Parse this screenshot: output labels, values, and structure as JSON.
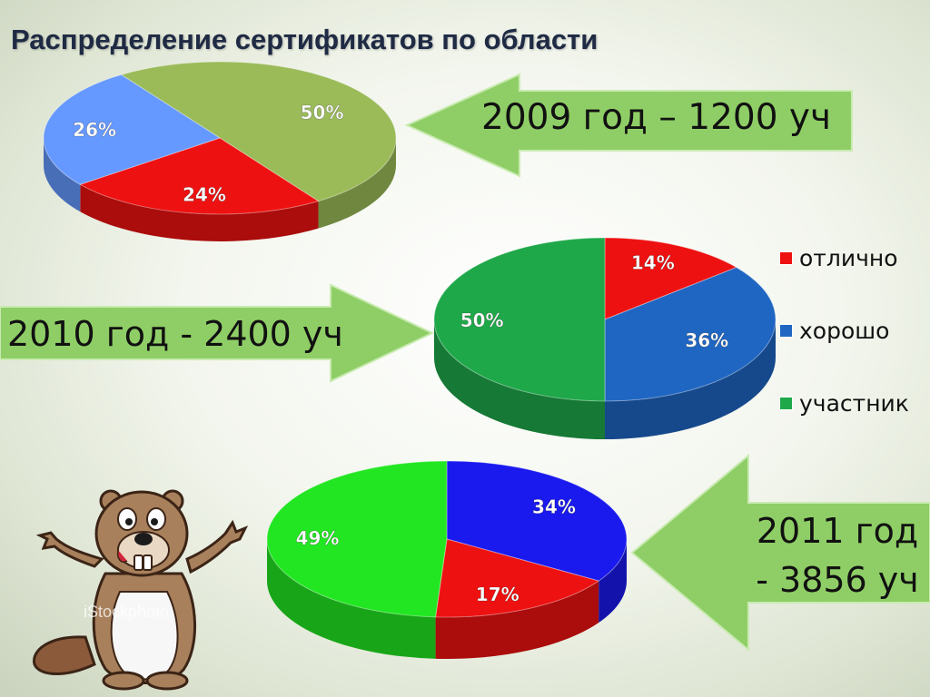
{
  "slide": {
    "title": "Распределение сертификатов по области"
  },
  "callouts": [
    {
      "lines": [
        "2009 год – 1200 уч"
      ]
    },
    {
      "lines": [
        "2010 год - 2400 уч"
      ]
    },
    {
      "lines": [
        "2011 год",
        "- 3856 уч"
      ]
    }
  ],
  "watermark": "iStockphoto",
  "colors": {
    "arrow_fill": "#8fce66",
    "arrow_stroke": "#c9ebb1"
  },
  "legend": [
    {
      "label": "отлично",
      "color": "#ee1111"
    },
    {
      "label": "хорошо",
      "color": "#1f66c2"
    },
    {
      "label": "участник",
      "color": "#1fa84a"
    }
  ],
  "chart_data": [
    {
      "type": "pie",
      "title": "",
      "slices": [
        {
          "label": "50%",
          "value": 50,
          "color": "#9bbb59"
        },
        {
          "label": "24%",
          "value": 24,
          "color": "#ee1111"
        },
        {
          "label": "26%",
          "value": 26,
          "color": "#6699ff"
        }
      ]
    },
    {
      "type": "pie",
      "title": "",
      "slices": [
        {
          "label": "14%",
          "value": 14,
          "color": "#ee1111"
        },
        {
          "label": "36%",
          "value": 36,
          "color": "#1f66c2"
        },
        {
          "label": "50%",
          "value": 50,
          "color": "#1fa84a"
        }
      ]
    },
    {
      "type": "pie",
      "title": "",
      "slices": [
        {
          "label": "34%",
          "value": 34,
          "color": "#1a1aee"
        },
        {
          "label": "17%",
          "value": 17,
          "color": "#ee1111"
        },
        {
          "label": "49%",
          "value": 49,
          "color": "#22e622"
        }
      ]
    }
  ]
}
